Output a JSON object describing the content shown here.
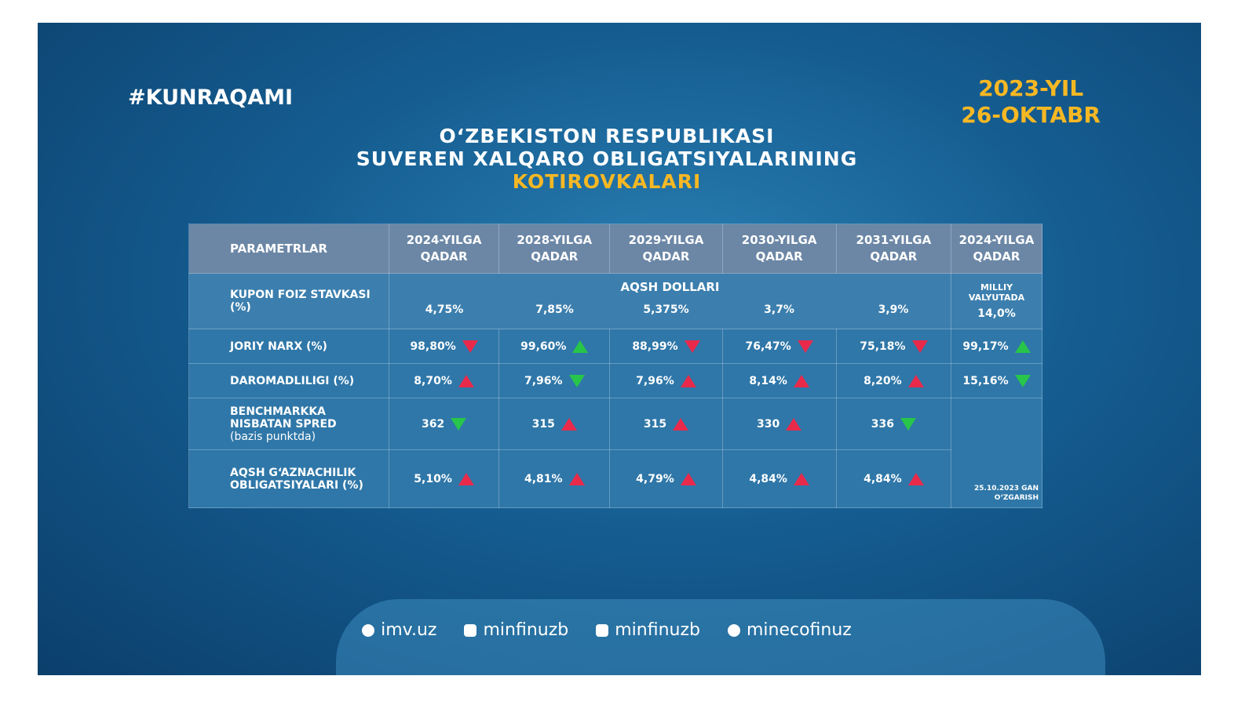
{
  "header": {
    "hashtag": "#KUNRAQAMI",
    "date": [
      "2023-YIL",
      "26-OKTABR"
    ],
    "title": [
      "O‘ZBEKISTON RESPUBLIKASI",
      "SUVEREN XALQARO OBLIGATSIYALARINING",
      "KOTIROVKALARI"
    ]
  },
  "table": {
    "columns": [
      "PARAMETRLAR",
      "2024-YILGA QADAR",
      "2028-YILGA QADAR",
      "2029-YILGA QADAR",
      "2030-YILGA QADAR",
      "2031-YILGA QADAR",
      "2024-YILGA QADAR"
    ],
    "coupon": {
      "label": "KUPON FOIZ STAVKASI (%)",
      "group": "AQSH DOLLARI",
      "values": [
        "4,75%",
        "7,85%",
        "5,375%",
        "3,7%",
        "3,9%"
      ],
      "local_label": "MILLIY VALYUTADA",
      "local_value": "14,0%"
    },
    "rows": [
      {
        "label": "JORIY NARX (%)",
        "values": [
          "98,80%",
          "99,60%",
          "88,99%",
          "76,47%",
          "75,18%",
          "99,17%"
        ]
      },
      {
        "label": "DAROMADLILIGI (%)",
        "values": [
          "8,70%",
          "7,96%",
          "7,96%",
          "8,14%",
          "8,20%",
          "15,16%"
        ]
      },
      {
        "label": "BENCHMARKKA NISBATAN SPRED",
        "sublabel": "(bazis punktda)",
        "values": [
          "362",
          "315",
          "315",
          "330",
          "336"
        ]
      },
      {
        "label": "AQSH G‘AZNACHILIK OBLIGATSIYALARI (%)",
        "values": [
          "5,10%",
          "4,81%",
          "4,79%",
          "4,84%",
          "4,84%"
        ]
      }
    ],
    "note": "25.10.2023 GAN O‘ZGARISH"
  },
  "footer": {
    "links": [
      "imv.uz",
      "minfinuzb",
      "minfinuzb",
      "minecofinuz"
    ]
  }
}
